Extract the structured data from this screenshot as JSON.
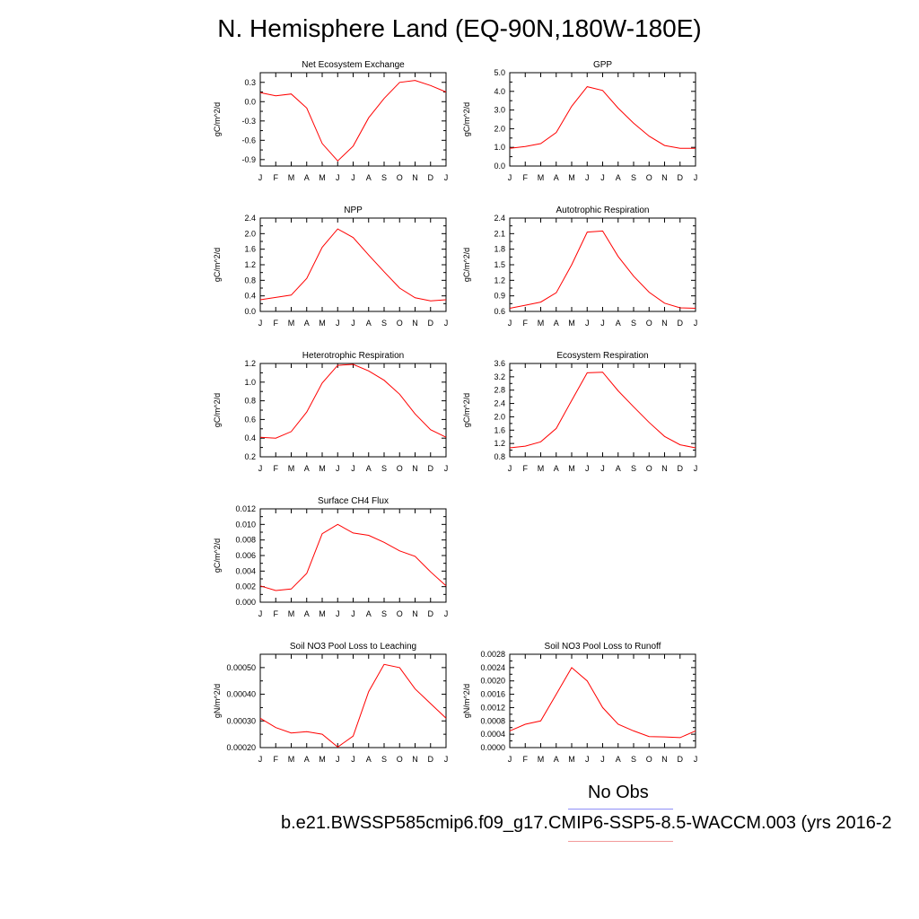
{
  "title": "N. Hemisphere Land (EQ-90N,180W-180E)",
  "legend": {
    "obs_label": "No Obs",
    "case_label": "b.e21.BWSSP585cmip6.f09_g17.CMIP6-SSP5-8.5-WACCM.003 (yrs 2016-2",
    "obs_color": "#8f8ff7",
    "model_color": "#f29a9a"
  },
  "line_color": "#ff0000",
  "chart_data": [
    {
      "type": "line",
      "title": "Net Ecosystem Exchange",
      "ylabel": "gC/m^2/d",
      "x": [
        "J",
        "F",
        "M",
        "A",
        "M",
        "J",
        "J",
        "A",
        "S",
        "O",
        "N",
        "D",
        "J"
      ],
      "values": [
        0.14,
        0.09,
        0.12,
        -0.1,
        -0.65,
        -0.92,
        -0.69,
        -0.25,
        0.05,
        0.3,
        0.33,
        0.25,
        0.15
      ],
      "ylim": [
        -1.0,
        0.45
      ],
      "yticks": [
        0.3,
        0.0,
        -0.3,
        -0.6,
        -0.9
      ],
      "yticklabels": [
        "0.3",
        "0.0",
        "-0.3",
        "-0.6",
        "-0.9"
      ]
    },
    {
      "type": "line",
      "title": "GPP",
      "ylabel": "gC/m^2/d",
      "x": [
        "J",
        "F",
        "M",
        "A",
        "M",
        "J",
        "J",
        "A",
        "S",
        "O",
        "N",
        "D",
        "J"
      ],
      "values": [
        0.95,
        1.05,
        1.2,
        1.8,
        3.2,
        4.25,
        4.05,
        3.1,
        2.3,
        1.6,
        1.1,
        0.95,
        0.95
      ],
      "ylim": [
        0.0,
        5.0
      ],
      "yticks": [
        0.0,
        1.0,
        2.0,
        3.0,
        4.0,
        5.0
      ],
      "yticklabels": [
        "0.0",
        "1.0",
        "2.0",
        "3.0",
        "4.0",
        "5.0"
      ]
    },
    {
      "type": "line",
      "title": "NPP",
      "ylabel": "gC/m^2/d",
      "x": [
        "J",
        "F",
        "M",
        "A",
        "M",
        "J",
        "J",
        "A",
        "S",
        "O",
        "N",
        "D",
        "J"
      ],
      "values": [
        0.3,
        0.36,
        0.42,
        0.85,
        1.65,
        2.12,
        1.9,
        1.45,
        1.02,
        0.6,
        0.35,
        0.27,
        0.3
      ],
      "ylim": [
        0.0,
        2.4
      ],
      "yticks": [
        0.0,
        0.4,
        0.8,
        1.2,
        1.6,
        2.0,
        2.4
      ],
      "yticklabels": [
        "0.0",
        "0.4",
        "0.8",
        "1.2",
        "1.6",
        "2.0",
        "2.4"
      ]
    },
    {
      "type": "line",
      "title": "Autotrophic Respiration",
      "ylabel": "gC/m^2/d",
      "x": [
        "J",
        "F",
        "M",
        "A",
        "M",
        "J",
        "J",
        "A",
        "S",
        "O",
        "N",
        "D",
        "J"
      ],
      "values": [
        0.66,
        0.72,
        0.78,
        0.96,
        1.5,
        2.13,
        2.15,
        1.66,
        1.28,
        0.97,
        0.76,
        0.67,
        0.66
      ],
      "ylim": [
        0.6,
        2.4
      ],
      "yticks": [
        0.6,
        0.9,
        1.2,
        1.5,
        1.8,
        2.1,
        2.4
      ],
      "yticklabels": [
        "0.6",
        "0.9",
        "1.2",
        "1.5",
        "1.8",
        "2.1",
        "2.4"
      ]
    },
    {
      "type": "line",
      "title": "Heterotrophic Respiration",
      "ylabel": "gC/m^2/d",
      "x": [
        "J",
        "F",
        "M",
        "A",
        "M",
        "J",
        "J",
        "A",
        "S",
        "O",
        "N",
        "D",
        "J"
      ],
      "values": [
        0.41,
        0.4,
        0.47,
        0.68,
        0.99,
        1.18,
        1.19,
        1.12,
        1.02,
        0.87,
        0.66,
        0.49,
        0.41
      ],
      "ylim": [
        0.2,
        1.2
      ],
      "yticks": [
        0.2,
        0.4,
        0.6,
        0.8,
        1.0,
        1.2
      ],
      "yticklabels": [
        "0.2",
        "0.4",
        "0.6",
        "0.8",
        "1.0",
        "1.2"
      ]
    },
    {
      "type": "line",
      "title": "Ecosystem Respiration",
      "ylabel": "gC/m^2/d",
      "x": [
        "J",
        "F",
        "M",
        "A",
        "M",
        "J",
        "J",
        "A",
        "S",
        "O",
        "N",
        "D",
        "J"
      ],
      "values": [
        1.07,
        1.12,
        1.25,
        1.65,
        2.49,
        3.32,
        3.34,
        2.78,
        2.3,
        1.83,
        1.41,
        1.16,
        1.07
      ],
      "ylim": [
        0.8,
        3.6
      ],
      "yticks": [
        0.8,
        1.2,
        1.6,
        2.0,
        2.4,
        2.8,
        3.2,
        3.6
      ],
      "yticklabels": [
        "0.8",
        "1.2",
        "1.6",
        "2.0",
        "2.4",
        "2.8",
        "3.2",
        "3.6"
      ]
    },
    {
      "type": "line",
      "title": "Surface CH4 Flux",
      "ylabel": "gC/m^2/d",
      "x": [
        "J",
        "F",
        "M",
        "A",
        "M",
        "J",
        "J",
        "A",
        "S",
        "O",
        "N",
        "D",
        "J"
      ],
      "values": [
        0.0021,
        0.0015,
        0.0017,
        0.0037,
        0.0088,
        0.01,
        0.0089,
        0.0086,
        0.0077,
        0.0066,
        0.0059,
        0.0039,
        0.0021
      ],
      "ylim": [
        0.0,
        0.012
      ],
      "yticks": [
        0.0,
        0.002,
        0.004,
        0.006,
        0.008,
        0.01,
        0.012
      ],
      "yticklabels": [
        "0.000",
        "0.002",
        "0.004",
        "0.006",
        "0.008",
        "0.010",
        "0.012"
      ]
    },
    {
      "type": "line",
      "title": "Soil NO3 Pool Loss to Leaching",
      "ylabel": "gN/m^2/d",
      "x": [
        "J",
        "F",
        "M",
        "A",
        "M",
        "J",
        "J",
        "A",
        "S",
        "O",
        "N",
        "D",
        "J"
      ],
      "values": [
        0.00031,
        0.000275,
        0.000255,
        0.00026,
        0.00025,
        0.000202,
        0.000243,
        0.00041,
        0.000512,
        0.0005,
        0.00042,
        0.000365,
        0.00031
      ],
      "ylim": [
        0.0002,
        0.00055
      ],
      "yticks": [
        0.0002,
        0.0003,
        0.0004,
        0.0005
      ],
      "yticklabels": [
        "0.00020",
        "0.00030",
        "0.00040",
        "0.00050"
      ]
    },
    {
      "type": "line",
      "title": "Soil NO3 Pool Loss to Runoff",
      "ylabel": "gN/m^2/d",
      "x": [
        "J",
        "F",
        "M",
        "A",
        "M",
        "J",
        "J",
        "A",
        "S",
        "O",
        "N",
        "D",
        "J"
      ],
      "values": [
        0.0005,
        0.0007,
        0.0008,
        0.0016,
        0.0024,
        0.002,
        0.0012,
        0.0007,
        0.0005,
        0.00033,
        0.00032,
        0.0003,
        0.0005
      ],
      "ylim": [
        0.0,
        0.0028
      ],
      "yticks": [
        0.0,
        0.0004,
        0.0008,
        0.0012,
        0.0016,
        0.002,
        0.0024,
        0.0028
      ],
      "yticklabels": [
        "0.0000",
        "0.0004",
        "0.0008",
        "0.0012",
        "0.0016",
        "0.0020",
        "0.0024",
        "0.0028"
      ]
    }
  ]
}
